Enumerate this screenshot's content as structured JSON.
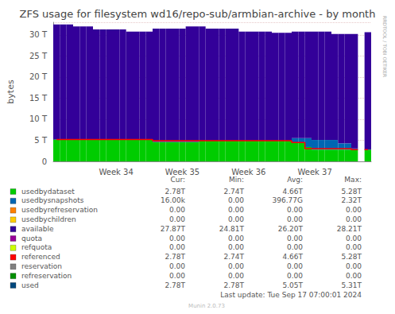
{
  "chart_data": {
    "type": "area",
    "stacked": true,
    "title": "ZFS usage for filesystem wd16/repo-sub/armbian-archive - by month",
    "y_label": "bytes",
    "annotations": [
      "RRDTOOL / TOBI OETIKER",
      "Last update: Tue Sep 17 07:00:01 2024",
      "Munin 2.0.73"
    ],
    "x": [
      null,
      null,
      null,
      null,
      null,
      null,
      null,
      null,
      null,
      "Week 34",
      null,
      null,
      null,
      null,
      null,
      null,
      null,
      null,
      null,
      "Week 35",
      null,
      null,
      null,
      null,
      null,
      null,
      null,
      null,
      null,
      "Week 36",
      null,
      null,
      null,
      null,
      null,
      null,
      null,
      null,
      null,
      "Week 37",
      null,
      null,
      null,
      null,
      null,
      null,
      null,
      null
    ],
    "ylim": [
      0,
      33
    ],
    "yticks": [
      0,
      {
        "value": 5,
        "label": "5 T"
      },
      {
        "value": 10,
        "label": "10 T"
      },
      {
        "value": 15,
        "label": "15 T"
      },
      {
        "value": 20,
        "label": "20 T"
      },
      {
        "value": 25,
        "label": "25 T"
      },
      {
        "value": 30,
        "label": "30 T"
      }
    ],
    "grid": true,
    "series": [
      {
        "name": "usedbydataset",
        "type": "area",
        "color": "#00cc00",
        "values": [
          5.2,
          5.2,
          5.2,
          5.2,
          5.2,
          5.2,
          5.2,
          5.2,
          5.2,
          5.2,
          5.2,
          5.2,
          5.2,
          5.2,
          5.2,
          4.6,
          4.6,
          4.6,
          4.6,
          4.6,
          4.6,
          4.6,
          4.9,
          4.9,
          4.9,
          4.9,
          4.9,
          4.9,
          4.9,
          4.9,
          4.9,
          4.9,
          4.9,
          4.9,
          4.9,
          4.9,
          4.5,
          4.5,
          3.4,
          2.78,
          2.78,
          2.78,
          2.78,
          2.78,
          2.78,
          2.78,
          null,
          2.78
        ]
      },
      {
        "name": "usedbysnapshots",
        "type": "area",
        "color": "#0066b3",
        "values": [
          0,
          0,
          0,
          0,
          0,
          0,
          0,
          0,
          0,
          0,
          0,
          0,
          0,
          0,
          0,
          0,
          0,
          0,
          0,
          0,
          0,
          0,
          0,
          0,
          0,
          0,
          0,
          0,
          0,
          0,
          0,
          0,
          0,
          0,
          0,
          0,
          1.0,
          1.0,
          2.1,
          2.3,
          2.3,
          2.3,
          2.3,
          1.5,
          1.5,
          0.3,
          null,
          2e-05
        ]
      },
      {
        "name": "available",
        "type": "area",
        "color": "#330099",
        "values": [
          27.3,
          27.3,
          27.3,
          26.8,
          26.8,
          26.8,
          26.1,
          26.1,
          26.1,
          26.1,
          26.1,
          25.6,
          25.6,
          25.6,
          25.6,
          26.9,
          26.9,
          26.9,
          26.9,
          26.9,
          27.4,
          27.4,
          27.1,
          26.6,
          26.6,
          26.6,
          26.6,
          26.6,
          25.9,
          25.9,
          25.9,
          25.9,
          25.9,
          25.6,
          25.6,
          25.6,
          25.3,
          25.3,
          25.3,
          25.72,
          25.72,
          25.72,
          25.12,
          25.92,
          25.92,
          27.12,
          null,
          27.87
        ]
      },
      {
        "name": "referenced",
        "type": "line",
        "color": "#ff0000",
        "values": [
          5.2,
          5.2,
          5.2,
          5.2,
          5.2,
          5.2,
          5.2,
          5.2,
          5.2,
          5.2,
          5.2,
          5.2,
          5.2,
          5.2,
          5.2,
          4.9,
          4.9,
          4.9,
          4.9,
          4.9,
          4.9,
          4.9,
          4.9,
          4.9,
          4.9,
          4.9,
          4.9,
          4.9,
          4.9,
          4.9,
          4.9,
          4.9,
          4.9,
          4.9,
          4.9,
          4.9,
          4.5,
          4.5,
          3.0,
          3.0,
          3.0,
          3.0,
          3.0,
          3.0,
          3.0,
          2.78,
          null,
          2.78
        ]
      }
    ],
    "legend_table": {
      "columns": [
        "Cur:",
        "Min:",
        "Avg:",
        "Max:"
      ],
      "rows": [
        {
          "name": "usedbydataset",
          "color": "#00cc00",
          "values": [
            "2.78T",
            "2.74T",
            "4.66T",
            "5.28T"
          ]
        },
        {
          "name": "usedbysnapshots",
          "color": "#0066b3",
          "values": [
            "16.00k",
            "0.00",
            "396.77G",
            "2.32T"
          ]
        },
        {
          "name": "usedbyrefreservation",
          "color": "#ff8000",
          "values": [
            "0.00",
            "0.00",
            "0.00",
            "0.00"
          ]
        },
        {
          "name": "usedbychildren",
          "color": "#ffcc00",
          "values": [
            "0.00",
            "0.00",
            "0.00",
            "0.00"
          ]
        },
        {
          "name": "available",
          "color": "#330099",
          "values": [
            "27.87T",
            "24.81T",
            "26.20T",
            "28.21T"
          ]
        },
        {
          "name": "quota",
          "color": "#990099",
          "values": [
            "0.00",
            "0.00",
            "0.00",
            "0.00"
          ]
        },
        {
          "name": "refquota",
          "color": "#ccff00",
          "values": [
            "0.00",
            "0.00",
            "0.00",
            "0.00"
          ]
        },
        {
          "name": "referenced",
          "color": "#ff0000",
          "values": [
            "2.78T",
            "2.74T",
            "4.66T",
            "5.28T"
          ]
        },
        {
          "name": "reservation",
          "color": "#808080",
          "values": [
            "0.00",
            "0.00",
            "0.00",
            "0.00"
          ]
        },
        {
          "name": "refreservation",
          "color": "#008f00",
          "values": [
            "0.00",
            "0.00",
            "0.00",
            "0.00"
          ]
        },
        {
          "name": "used",
          "color": "#00487d",
          "values": [
            "2.78T",
            "2.78T",
            "5.05T",
            "5.31T"
          ]
        }
      ]
    }
  }
}
